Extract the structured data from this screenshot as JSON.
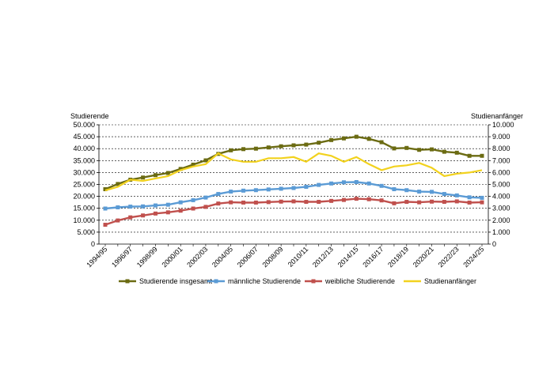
{
  "chart_data": {
    "type": "line",
    "y_left_label": "Studierende",
    "y_right_label": "Studienanfänger",
    "ylim_left": [
      0,
      50000
    ],
    "ylim_right": [
      0,
      10000
    ],
    "y_left_ticks": [
      "0",
      "5.000",
      "10.000",
      "15.000",
      "20.000",
      "25.000",
      "30.000",
      "35.000",
      "40.000",
      "45.000",
      "50.000"
    ],
    "y_right_ticks": [
      "0",
      "1.000",
      "2.000",
      "3.000",
      "4.000",
      "5.000",
      "6.000",
      "7.000",
      "8.000",
      "9.000",
      "10.000"
    ],
    "grid": "horizontal",
    "legend_position": "bottom",
    "x": [
      "1994/95",
      "1995/96",
      "1996/97",
      "1997/98",
      "1998/99",
      "1999/00",
      "2000/01",
      "2001/02",
      "2002/03",
      "2003/04",
      "2004/05",
      "2005/06",
      "2006/07",
      "2007/08",
      "2008/09",
      "2009/10",
      "2010/11",
      "2011/12",
      "2012/13",
      "2013/14",
      "2014/15",
      "2015/16",
      "2016/17",
      "2017/18",
      "2018/19",
      "2019/20",
      "2020/21",
      "2021/22",
      "2022/23",
      "2023/24",
      "2024/25"
    ],
    "x_tick_labels": [
      "1994/95",
      "1996/97",
      "1998/99",
      "2000/01",
      "2002/03",
      "2004/05",
      "2006/07",
      "2008/09",
      "2010/11",
      "2012/13",
      "2014/15",
      "2016/17",
      "2018/19",
      "2020/21",
      "2022/23",
      "2024/25"
    ],
    "series": [
      {
        "name": "Studierende insgesamt",
        "axis": "left",
        "color": "#6b6b12",
        "marker": "square",
        "values": [
          23000,
          25200,
          27000,
          27900,
          28900,
          29800,
          31500,
          33300,
          35100,
          37800,
          39300,
          39800,
          40000,
          40500,
          41000,
          41400,
          41700,
          42500,
          43600,
          44300,
          45000,
          44100,
          42700,
          40100,
          40300,
          39500,
          39700,
          38700,
          38300,
          37000,
          37000
        ]
      },
      {
        "name": "männliche Studierende",
        "axis": "left",
        "color": "#5b9bd5",
        "marker": "square",
        "values": [
          14900,
          15400,
          15700,
          15800,
          16200,
          16500,
          17500,
          18400,
          19500,
          21000,
          22000,
          22400,
          22600,
          22900,
          23200,
          23500,
          24000,
          24800,
          25400,
          25900,
          26000,
          25400,
          24400,
          23000,
          22600,
          22000,
          21900,
          21000,
          20400,
          19600,
          19400
        ]
      },
      {
        "name": "weibliche Studierende",
        "axis": "left",
        "color": "#c0504d",
        "marker": "square",
        "values": [
          8100,
          9900,
          11200,
          12000,
          12800,
          13300,
          14000,
          14900,
          15600,
          17000,
          17500,
          17400,
          17400,
          17600,
          17800,
          17900,
          17700,
          17700,
          18100,
          18500,
          19000,
          18800,
          18300,
          17100,
          17700,
          17500,
          17800,
          17700,
          17900,
          17400,
          17500
        ]
      },
      {
        "name": "Studienanfänger",
        "axis": "right",
        "color": "#f2d21e",
        "marker": "none",
        "values": [
          4500,
          4800,
          5400,
          5300,
          5500,
          5700,
          6200,
          6500,
          6700,
          7600,
          7100,
          6900,
          6900,
          7200,
          7200,
          7300,
          6900,
          7600,
          7400,
          6900,
          7300,
          6700,
          6200,
          6500,
          6600,
          6800,
          6400,
          5700,
          5900,
          6000,
          6200
        ]
      }
    ]
  }
}
